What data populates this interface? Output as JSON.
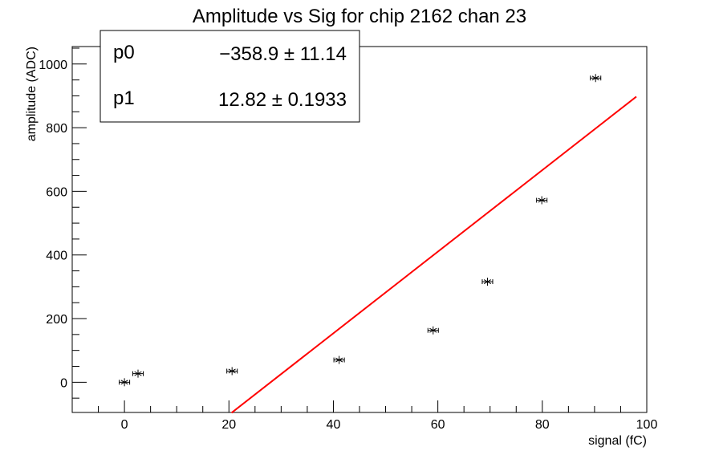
{
  "chart_data": {
    "type": "scatter",
    "title": "Amplitude vs Sig for chip 2162 chan 23",
    "xlabel": "signal (fC)",
    "ylabel": "amplitude (ADC)",
    "xlim": [
      -10,
      100
    ],
    "ylim": [
      -95,
      1055
    ],
    "x_ticks": [
      0,
      20,
      40,
      60,
      80,
      100
    ],
    "y_ticks": [
      0,
      200,
      400,
      600,
      800,
      1000
    ],
    "grid": false,
    "points": {
      "x": [
        0,
        2.6,
        20.6,
        41.1,
        59.1,
        69.5,
        79.9,
        90.2
      ],
      "y": [
        0,
        27,
        35,
        70,
        163,
        316,
        572,
        956
      ],
      "x_err": [
        1.0,
        1.0,
        1.0,
        1.0,
        1.0,
        1.0,
        1.0,
        1.0
      ],
      "marker_color": "#000000"
    },
    "fit": {
      "color": "#ff0000",
      "x_range": [
        20.5,
        98
      ],
      "p0": -358.9,
      "p1": 12.82
    },
    "stats_box": {
      "placement": "top-left",
      "rows": [
        {
          "name": "p0",
          "value": "−358.9 ± 11.14"
        },
        {
          "name": "p1",
          "value": "12.82 ± 0.1933"
        }
      ]
    }
  }
}
